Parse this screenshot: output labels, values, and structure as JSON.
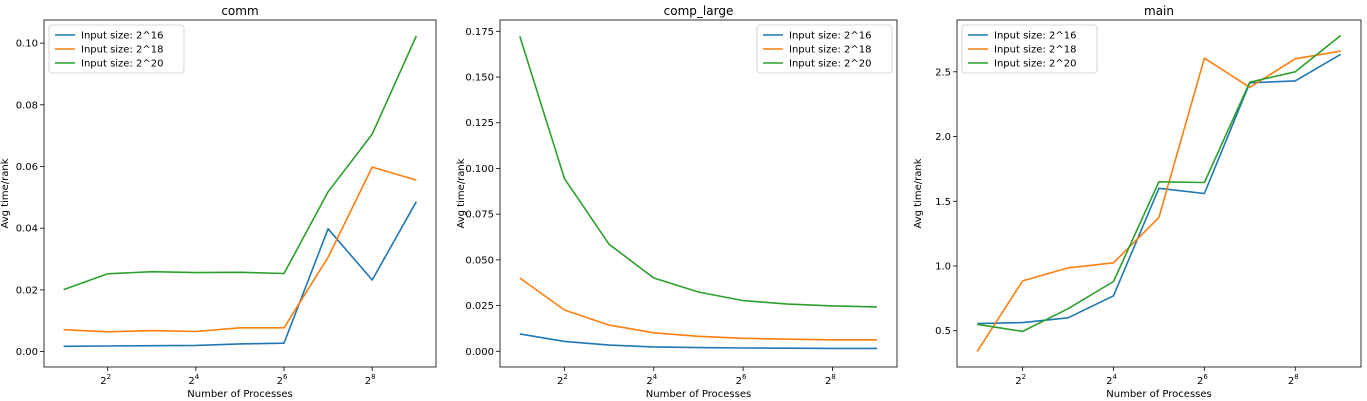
{
  "chart_data": [
    {
      "type": "line",
      "title": "comm",
      "xlabel": "Number of Processes",
      "ylabel": "Avg time/rank",
      "x_scale": "log2",
      "x": [
        2,
        4,
        8,
        16,
        32,
        64,
        128,
        256,
        512
      ],
      "xlim": [
        1.47,
        698
      ],
      "ylim": [
        -0.005,
        0.1075
      ],
      "x_ticks": [
        {
          "value": 4,
          "base": "2",
          "exp": "2"
        },
        {
          "value": 16,
          "base": "2",
          "exp": "4"
        },
        {
          "value": 64,
          "base": "2",
          "exp": "6"
        },
        {
          "value": 256,
          "base": "2",
          "exp": "8"
        }
      ],
      "y_ticks": [
        {
          "value": 0,
          "label": "0.00"
        },
        {
          "value": 0.02,
          "label": "0.02"
        },
        {
          "value": 0.04,
          "label": "0.04"
        },
        {
          "value": 0.06,
          "label": "0.06"
        },
        {
          "value": 0.08,
          "label": "0.08"
        },
        {
          "value": 0.1,
          "label": "0.10"
        }
      ],
      "legend_position": "top-left",
      "series": [
        {
          "name": "Input size: 2^16",
          "color": "#1f77b4",
          "values": [
            0.0017,
            0.0018,
            0.0019,
            0.002,
            0.0025,
            0.0027,
            0.0398,
            0.0232,
            0.0486
          ]
        },
        {
          "name": "Input size: 2^18",
          "color": "#ff7f0e",
          "values": [
            0.0071,
            0.0064,
            0.0068,
            0.0065,
            0.0077,
            0.0077,
            0.0306,
            0.0598,
            0.0556
          ]
        },
        {
          "name": "Input size: 2^20",
          "color": "#2ca02c",
          "values": [
            0.0201,
            0.0252,
            0.0259,
            0.0256,
            0.0257,
            0.0253,
            0.0518,
            0.0705,
            0.1023
          ]
        }
      ]
    },
    {
      "type": "line",
      "title": "comp_large",
      "xlabel": "Number of Processes",
      "ylabel": "Avg time/rank",
      "x_scale": "log2",
      "x": [
        2,
        4,
        8,
        16,
        32,
        64,
        128,
        256,
        512
      ],
      "xlim": [
        1.47,
        698
      ],
      "ylim": [
        -0.0086,
        0.1812
      ],
      "x_ticks": [
        {
          "value": 4,
          "base": "2",
          "exp": "2"
        },
        {
          "value": 16,
          "base": "2",
          "exp": "4"
        },
        {
          "value": 64,
          "base": "2",
          "exp": "6"
        },
        {
          "value": 256,
          "base": "2",
          "exp": "8"
        }
      ],
      "y_ticks": [
        {
          "value": 0,
          "label": "0.000"
        },
        {
          "value": 0.025,
          "label": "0.025"
        },
        {
          "value": 0.05,
          "label": "0.050"
        },
        {
          "value": 0.075,
          "label": "0.075"
        },
        {
          "value": 0.1,
          "label": "0.100"
        },
        {
          "value": 0.125,
          "label": "0.125"
        },
        {
          "value": 0.15,
          "label": "0.150"
        },
        {
          "value": 0.175,
          "label": "0.175"
        }
      ],
      "legend_position": "top-right",
      "series": [
        {
          "name": "Input size: 2^16",
          "color": "#1f77b4",
          "values": [
            0.0095,
            0.0054,
            0.0034,
            0.0024,
            0.002,
            0.0018,
            0.0017,
            0.0016,
            0.0016
          ]
        },
        {
          "name": "Input size: 2^18",
          "color": "#ff7f0e",
          "values": [
            0.0401,
            0.0226,
            0.0143,
            0.0101,
            0.0082,
            0.0071,
            0.0066,
            0.0063,
            0.0063
          ]
        },
        {
          "name": "Input size: 2^20",
          "color": "#2ca02c",
          "values": [
            0.1723,
            0.0944,
            0.0585,
            0.0401,
            0.0324,
            0.0277,
            0.0258,
            0.0248,
            0.0243
          ]
        }
      ]
    },
    {
      "type": "line",
      "title": "main",
      "xlabel": "Number of Processes",
      "ylabel": "Avg time/rank",
      "x_scale": "log2",
      "x": [
        2,
        4,
        8,
        16,
        32,
        64,
        128,
        256,
        512
      ],
      "xlim": [
        1.47,
        698
      ],
      "ylim": [
        0.22,
        2.9
      ],
      "x_ticks": [
        {
          "value": 4,
          "base": "2",
          "exp": "2"
        },
        {
          "value": 16,
          "base": "2",
          "exp": "4"
        },
        {
          "value": 64,
          "base": "2",
          "exp": "6"
        },
        {
          "value": 256,
          "base": "2",
          "exp": "8"
        }
      ],
      "y_ticks": [
        {
          "value": 0.5,
          "label": "0.5"
        },
        {
          "value": 1.0,
          "label": "1.0"
        },
        {
          "value": 1.5,
          "label": "1.5"
        },
        {
          "value": 2.0,
          "label": "2.0"
        },
        {
          "value": 2.5,
          "label": "2.5"
        }
      ],
      "legend_position": "top-left",
      "series": [
        {
          "name": "Input size: 2^16",
          "color": "#1f77b4",
          "values": [
            0.555,
            0.563,
            0.6,
            0.77,
            1.6,
            1.56,
            2.415,
            2.43,
            2.635
          ]
        },
        {
          "name": "Input size: 2^18",
          "color": "#ff7f0e",
          "values": [
            0.34,
            0.885,
            0.985,
            1.025,
            1.375,
            2.605,
            2.38,
            2.6,
            2.66
          ]
        },
        {
          "name": "Input size: 2^20",
          "color": "#2ca02c",
          "values": [
            0.55,
            0.495,
            0.67,
            0.88,
            1.65,
            1.645,
            2.42,
            2.5,
            2.78
          ]
        }
      ]
    }
  ]
}
